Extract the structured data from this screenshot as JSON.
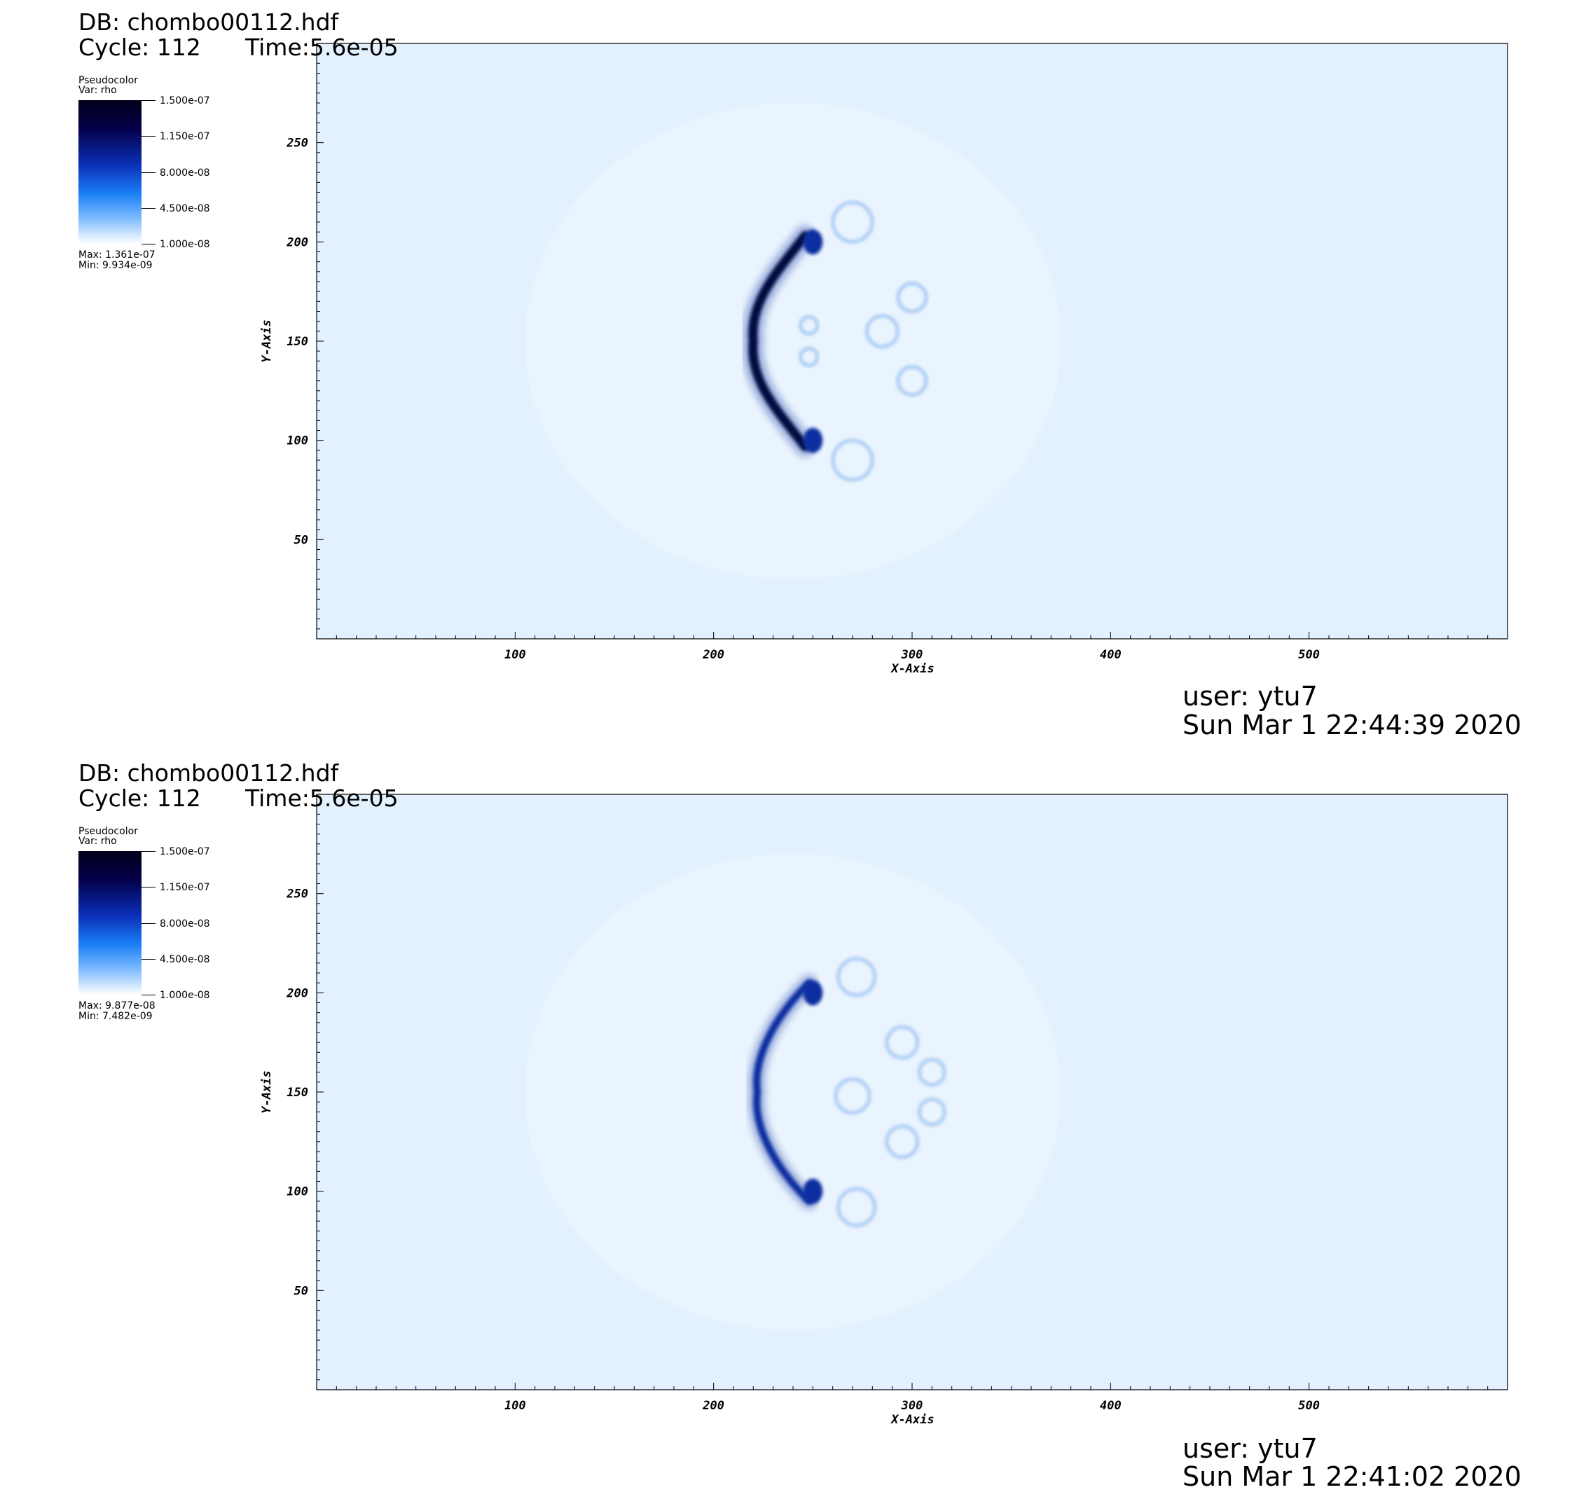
{
  "panels": [
    {
      "db": "DB: chombo00112.hdf",
      "cycle": "Cycle: 112",
      "time": "Time:5.6e-05",
      "legend": {
        "title": "Pseudocolor",
        "var": "Var: rho",
        "ticks": [
          "1.500e-07",
          "1.150e-07",
          "8.000e-08",
          "4.500e-08",
          "1.000e-08"
        ],
        "max": "Max:  1.361e-07",
        "min": "Min:  9.934e-09"
      },
      "user": "user: ytu7",
      "date": "Sun Mar  1 22:44:39 2020"
    },
    {
      "db": "DB: chombo00112.hdf",
      "cycle": "Cycle: 112",
      "time": "Time:5.6e-05",
      "legend": {
        "title": "Pseudocolor",
        "var": "Var: rho",
        "ticks": [
          "1.500e-07",
          "1.150e-07",
          "8.000e-08",
          "4.500e-08",
          "1.000e-08"
        ],
        "max": "Max:  9.877e-08",
        "min": "Min:  7.482e-09"
      },
      "user": "user: ytu7",
      "date": "Sun Mar  1 22:41:02 2020"
    }
  ],
  "chart_data": [
    {
      "type": "heatmap",
      "variable": "rho",
      "xlabel": "X-Axis",
      "ylabel": "Y-Axis",
      "xlim": [
        0,
        600
      ],
      "ylim": [
        0,
        300
      ],
      "xticks": [
        100,
        200,
        300,
        400,
        500
      ],
      "yticks": [
        50,
        100,
        150,
        200,
        250
      ],
      "colorbar_range": [
        1e-08,
        1.5e-07
      ],
      "data_max": 1.361e-07,
      "data_min": 9.934e-09,
      "background_color": "#e3f0fd",
      "feature_color": "#0a2fa0"
    },
    {
      "type": "heatmap",
      "variable": "rho",
      "xlabel": "X-Axis",
      "ylabel": "Y-Axis",
      "xlim": [
        0,
        600
      ],
      "ylim": [
        0,
        300
      ],
      "xticks": [
        100,
        200,
        300,
        400,
        500
      ],
      "yticks": [
        50,
        100,
        150,
        200,
        250
      ],
      "colorbar_range": [
        1e-08,
        1.5e-07
      ],
      "data_max": 9.877e-08,
      "data_min": 7.482e-09,
      "background_color": "#e3f0fd",
      "feature_color": "#0a2fa0"
    }
  ]
}
